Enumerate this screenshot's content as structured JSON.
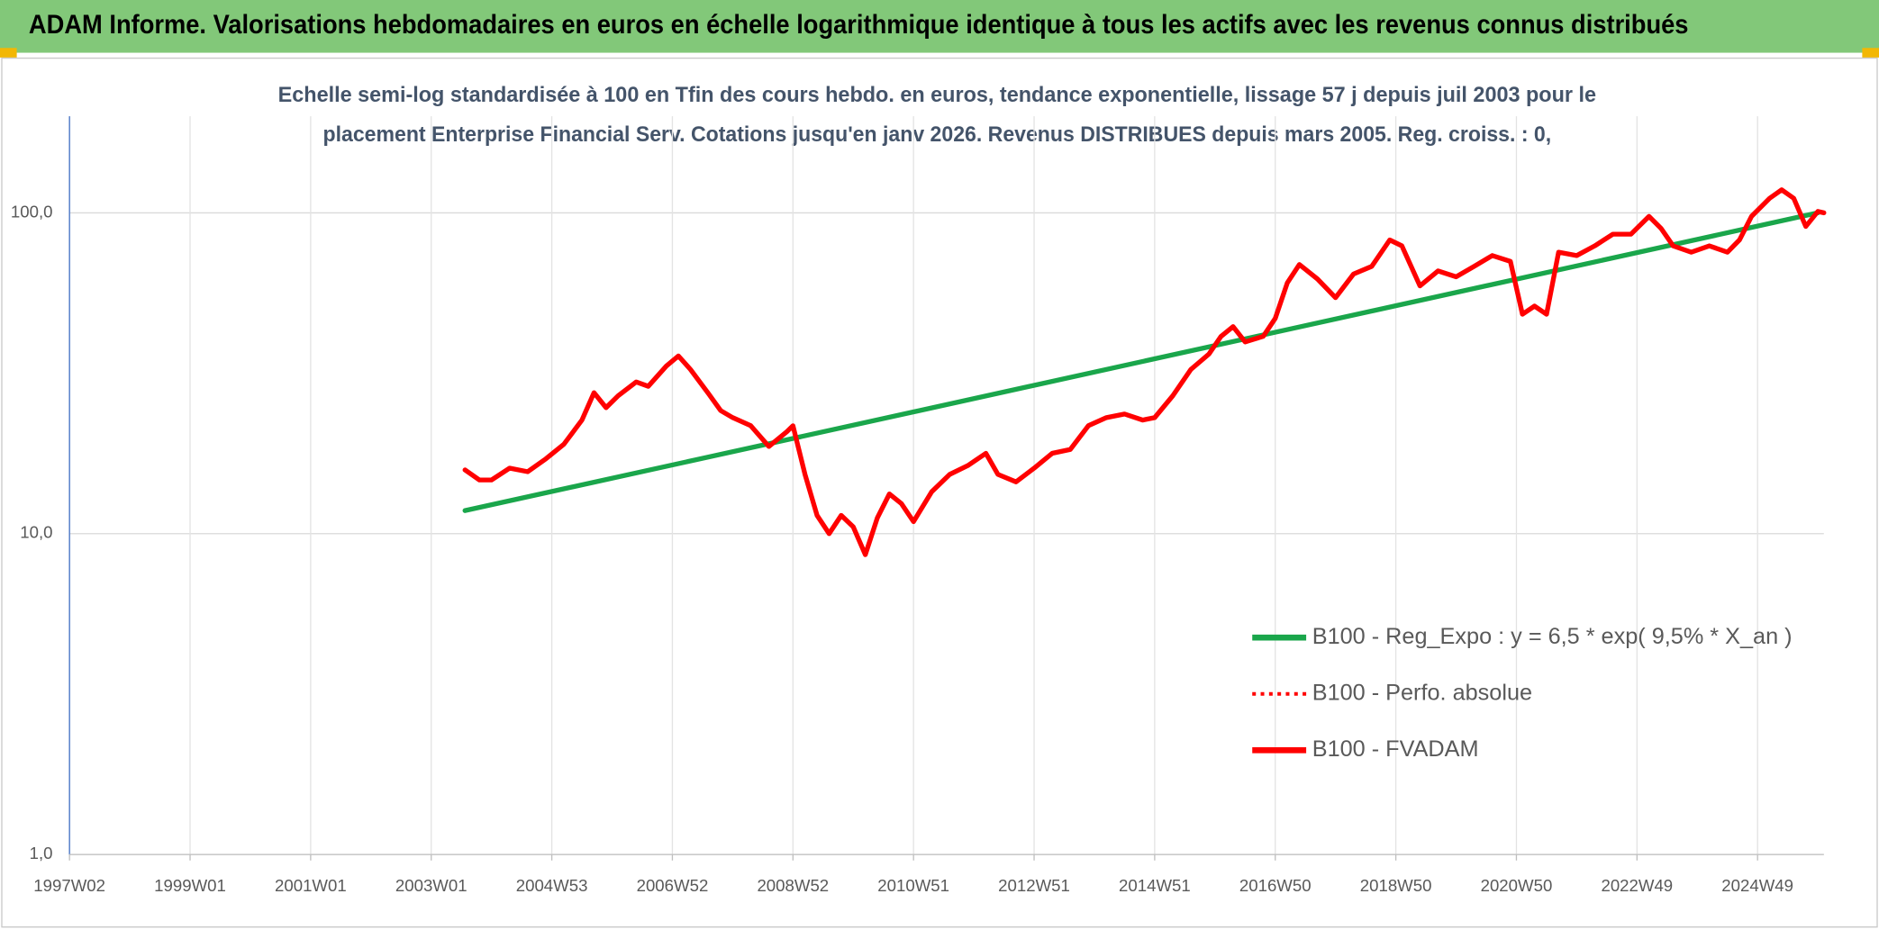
{
  "chart_data": {
    "type": "line",
    "title": "ADAM Informe. Valorisations hebdomadaires en euros en échelle logarithmique identique à tous les actifs avec les revenus connus distribués",
    "subtitle": [
      "Echelle semi-log standardisée à 100 en Tfin des cours hebdo. en euros, tendance exponentielle, lissage 57 j depuis juil 2003 pour le",
      "placement Enterprise Financial Serv. Cotations jusqu'en janv 2026. Revenus DISTRIBUES depuis mars 2005. Reg. croiss. : 0,"
    ],
    "log_y": true,
    "grid": true,
    "legend": "right",
    "xlim": [
      1997.0,
      2026.1
    ],
    "xticks": [
      {
        "value": 1997.0,
        "label": "1997W02"
      },
      {
        "value": 1999.0,
        "label": "1999W01"
      },
      {
        "value": 2001.0,
        "label": "2001W01"
      },
      {
        "value": 2003.0,
        "label": "2003W01"
      },
      {
        "value": 2005.0,
        "label": "2004W53"
      },
      {
        "value": 2007.0,
        "label": "2006W52"
      },
      {
        "value": 2009.0,
        "label": "2008W52"
      },
      {
        "value": 2011.0,
        "label": "2010W51"
      },
      {
        "value": 2013.0,
        "label": "2012W51"
      },
      {
        "value": 2015.0,
        "label": "2014W51"
      },
      {
        "value": 2017.0,
        "label": "2016W50"
      },
      {
        "value": 2019.0,
        "label": "2018W50"
      },
      {
        "value": 2021.0,
        "label": "2020W50"
      },
      {
        "value": 2023.0,
        "label": "2022W49"
      },
      {
        "value": 2025.0,
        "label": "2024W49"
      }
    ],
    "ylim": [
      1,
      200
    ],
    "yticks": [
      {
        "value": 1,
        "label": "1,0"
      },
      {
        "value": 10,
        "label": "10,0"
      },
      {
        "value": 100,
        "label": "100,0"
      }
    ],
    "series": [
      {
        "name": "B100 - Reg_Expo : y = 6,5 * exp( 9,5% *  X_an )",
        "color": "#1aa64b",
        "style": "solid",
        "x": [
          2003.56,
          2026.0
        ],
        "values": [
          11.8,
          100
        ]
      },
      {
        "name": "B100 - Perfo. absolue",
        "color": "#ff0000",
        "style": "dotted"
      },
      {
        "name": "B100 - FVADAM",
        "color": "#ff0000",
        "style": "solid",
        "x": [
          2003.56,
          2003.8,
          2004.0,
          2004.3,
          2004.6,
          2004.9,
          2005.2,
          2005.5,
          2005.7,
          2005.9,
          2006.1,
          2006.4,
          2006.6,
          2006.9,
          2007.1,
          2007.3,
          2007.6,
          2007.8,
          2008.0,
          2008.3,
          2008.6,
          2008.9,
          2009.0,
          2009.2,
          2009.4,
          2009.6,
          2009.8,
          2010.0,
          2010.2,
          2010.4,
          2010.6,
          2010.8,
          2011.0,
          2011.3,
          2011.6,
          2011.9,
          2012.2,
          2012.4,
          2012.7,
          2013.0,
          2013.3,
          2013.6,
          2013.9,
          2014.2,
          2014.5,
          2014.8,
          2015.0,
          2015.3,
          2015.6,
          2015.9,
          2016.1,
          2016.3,
          2016.5,
          2016.8,
          2017.0,
          2017.2,
          2017.4,
          2017.7,
          2018.0,
          2018.3,
          2018.6,
          2018.9,
          2019.1,
          2019.4,
          2019.7,
          2020.0,
          2020.3,
          2020.6,
          2020.9,
          2021.1,
          2021.3,
          2021.5,
          2021.7,
          2022.0,
          2022.3,
          2022.6,
          2022.9,
          2023.2,
          2023.4,
          2023.6,
          2023.9,
          2024.2,
          2024.5,
          2024.7,
          2024.9,
          2025.2,
          2025.4,
          2025.6,
          2025.8,
          2026.0,
          2026.1
        ],
        "values": [
          15.8,
          14.7,
          14.7,
          16.0,
          15.6,
          17.1,
          19.0,
          22.6,
          27.5,
          24.7,
          26.9,
          29.7,
          28.8,
          33.3,
          35.8,
          32.5,
          27.3,
          24.2,
          23.0,
          21.7,
          18.7,
          20.8,
          21.7,
          15.3,
          11.4,
          10.0,
          11.4,
          10.5,
          8.6,
          11.2,
          13.3,
          12.4,
          10.9,
          13.5,
          15.3,
          16.3,
          17.8,
          15.3,
          14.5,
          16.0,
          17.8,
          18.3,
          21.7,
          23.0,
          23.6,
          22.6,
          23.0,
          26.9,
          32.5,
          36.3,
          41.2,
          44.2,
          39.6,
          41.2,
          46.9,
          60.5,
          69.0,
          62.2,
          54.4,
          64.5,
          68.1,
          82.3,
          78.9,
          59.2,
          65.9,
          63.2,
          68.1,
          73.6,
          70.6,
          48.3,
          51.2,
          48.3,
          75.4,
          73.6,
          78.9,
          85.8,
          85.8,
          97.5,
          89.4,
          78.9,
          75.4,
          78.9,
          75.4,
          82.3,
          97.5,
          111,
          118,
          111,
          90.7,
          101,
          100
        ]
      }
    ]
  }
}
